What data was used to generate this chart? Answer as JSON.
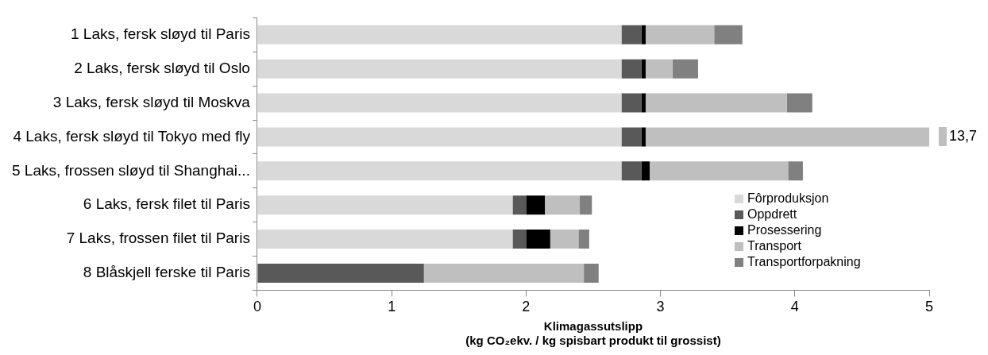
{
  "chart_data": {
    "type": "bar",
    "orientation": "horizontal",
    "stacked": true,
    "xlabel": "Klimagassutslipp\n(kg CO₂ekv. / kg spisbart produkt til grossist)",
    "categories": [
      "1 Laks, fersk sløyd til Paris",
      "2 Laks, fersk sløyd til Oslo",
      "3 Laks, fersk sløyd til Moskva",
      "4 Laks, fersk sløyd til Tokyo med fly",
      "5 Laks, frossen sløyd til Shanghai...",
      "6 Laks, fersk filet til Paris",
      "7 Laks, frossen filet til Paris",
      "8 Blåskjell ferske til Paris"
    ],
    "series": [
      {
        "name": "Fôrproduksjon",
        "color": "#d9d9d9",
        "values": [
          2.71,
          2.71,
          2.71,
          2.71,
          2.71,
          1.9,
          1.9,
          null
        ]
      },
      {
        "name": "Oppdrett",
        "color": "#595959",
        "values": [
          0.15,
          0.15,
          0.15,
          0.15,
          0.15,
          0.1,
          0.1,
          1.24
        ]
      },
      {
        "name": "Prosessering",
        "color": "#000000",
        "values": [
          0.03,
          0.03,
          0.03,
          0.03,
          0.06,
          0.14,
          0.18,
          null
        ]
      },
      {
        "name": "Transport",
        "color": "#bfbfbf",
        "values": [
          0.51,
          0.2,
          1.05,
          2.11,
          1.03,
          0.26,
          0.21,
          1.19
        ]
      },
      {
        "name": "Transportforpakning",
        "color": "#808080",
        "values": [
          0.21,
          0.19,
          0.19,
          null,
          0.11,
          0.09,
          0.08,
          0.11
        ]
      }
    ],
    "annotations": [
      "13,7"
    ],
    "xlim": [
      0,
      5
    ],
    "xticks": [
      0,
      1,
      2,
      3,
      4,
      5
    ],
    "grid": false,
    "legend": "bottom right"
  }
}
